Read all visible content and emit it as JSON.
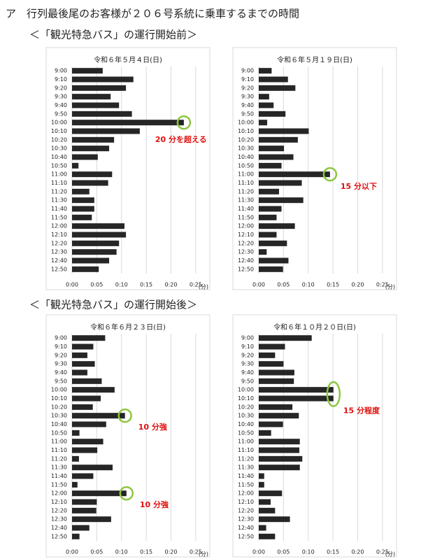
{
  "heading": "ア　行列最後尾のお客様が２０６号系統に乗車するまでの時間",
  "sections": [
    "＜「観光特急バス」の運行開始前＞",
    "＜「観光特急バス」の運行開始後＞"
  ],
  "chart_data": [
    {
      "type": "bar",
      "orientation": "horizontal",
      "title": "令和６年５月４日(日)",
      "categories": [
        "9:00",
        "9:10",
        "9:20",
        "9:30",
        "9:40",
        "9:50",
        "10:00",
        "10:10",
        "10:20",
        "10:30",
        "10:40",
        "10:50",
        "11:00",
        "11:10",
        "11:20",
        "11:30",
        "11:40",
        "11:50",
        "12:00",
        "12:10",
        "12:20",
        "12:30",
        "12:40",
        "12:50"
      ],
      "values": [
        6.2,
        12.4,
        10.9,
        7.8,
        9.5,
        12.1,
        22.6,
        13.7,
        8.5,
        7.5,
        5.2,
        1.3,
        8.1,
        7.3,
        3.5,
        4.5,
        4.5,
        4.0,
        10.6,
        10.9,
        9.5,
        9.0,
        7.5,
        5.4
      ],
      "color": "#262626",
      "xlim": [
        0,
        27
      ],
      "xticks": [
        {
          "value": 0,
          "label": "0:00"
        },
        {
          "value": 5,
          "label": "0:05"
        },
        {
          "value": 10,
          "label": "0:10"
        },
        {
          "value": 15,
          "label": "0:15"
        },
        {
          "value": 20,
          "label": "0:20"
        },
        {
          "value": 25,
          "label": "0:25"
        }
      ],
      "xlabel": "(分)",
      "grid": true,
      "annotations": [
        "20 分を超える"
      ]
    },
    {
      "type": "bar",
      "orientation": "horizontal",
      "title": "令和６年５月１９日(日)",
      "categories": [
        "9:00",
        "9:10",
        "9:20",
        "9:30",
        "9:40",
        "9:50",
        "10:00",
        "10:10",
        "10:20",
        "10:30",
        "10:40",
        "10:50",
        "11:00",
        "11:10",
        "11:20",
        "11:30",
        "11:40",
        "11:50",
        "12:00",
        "12:10",
        "12:20",
        "12:30",
        "12:40",
        "12:50"
      ],
      "values": [
        2.6,
        5.9,
        7.4,
        2.1,
        3.0,
        5.4,
        1.7,
        10.1,
        7.9,
        5.1,
        7.0,
        4.6,
        14.4,
        8.7,
        4.1,
        9.0,
        4.6,
        3.6,
        7.3,
        3.6,
        5.7,
        1.6,
        6.0,
        4.9
      ],
      "color": "#262626",
      "xlim": [
        0,
        27
      ],
      "xticks": [
        {
          "value": 0,
          "label": "0:00"
        },
        {
          "value": 5,
          "label": "0:05"
        },
        {
          "value": 10,
          "label": "0:10"
        },
        {
          "value": 15,
          "label": "0:15"
        },
        {
          "value": 20,
          "label": "0:20"
        },
        {
          "value": 25,
          "label": "0:25"
        }
      ],
      "xlabel": "(分)",
      "grid": true,
      "annotations": [
        "15 分以下"
      ]
    },
    {
      "type": "bar",
      "orientation": "horizontal",
      "title": "令和６年６月２３日(日)",
      "categories": [
        "9:00",
        "9:10",
        "9:20",
        "9:30",
        "9:40",
        "9:50",
        "10:00",
        "10:10",
        "10:20",
        "10:30",
        "10:40",
        "10:50",
        "11:00",
        "11:10",
        "11:20",
        "11:30",
        "11:40",
        "11:50",
        "12:00",
        "12:10",
        "12:20",
        "12:30",
        "12:40",
        "12:50"
      ],
      "values": [
        6.7,
        4.3,
        3.1,
        4.6,
        3.1,
        6.0,
        8.6,
        5.8,
        4.2,
        10.7,
        6.9,
        1.5,
        6.3,
        5.1,
        1.4,
        8.2,
        4.3,
        1.1,
        11.0,
        5.0,
        4.9,
        7.9,
        3.5,
        1.5
      ],
      "color": "#262626",
      "xlim": [
        0,
        27
      ],
      "xticks": [
        {
          "value": 0,
          "label": "0:00"
        },
        {
          "value": 5,
          "label": "0:05"
        },
        {
          "value": 10,
          "label": "0:10"
        },
        {
          "value": 15,
          "label": "0:15"
        },
        {
          "value": 20,
          "label": "0:20"
        },
        {
          "value": 25,
          "label": "0:25"
        }
      ],
      "xlabel": "(分)",
      "grid": true,
      "annotations": [
        "10 分強",
        "10 分強"
      ]
    },
    {
      "type": "bar",
      "orientation": "horizontal",
      "title": "令和６年１０月２０日(日)",
      "categories": [
        "9:00",
        "9:10",
        "9:20",
        "9:30",
        "9:40",
        "9:50",
        "10:00",
        "10:10",
        "10:20",
        "10:30",
        "10:40",
        "10:50",
        "11:00",
        "11:10",
        "11:20",
        "11:30",
        "11:40",
        "11:50",
        "12:00",
        "12:10",
        "12:20",
        "12:30",
        "12:40",
        "12:50"
      ],
      "values": [
        10.7,
        5.3,
        3.3,
        5.0,
        7.2,
        7.1,
        15.1,
        15.1,
        6.8,
        8.1,
        4.9,
        2.5,
        8.3,
        8.2,
        8.8,
        8.3,
        1.1,
        1.1,
        4.7,
        2.4,
        3.3,
        6.3,
        1.5,
        3.3
      ],
      "color": "#262626",
      "xlim": [
        0,
        27
      ],
      "xticks": [
        {
          "value": 0,
          "label": "0:00"
        },
        {
          "value": 5,
          "label": "0:05"
        },
        {
          "value": 10,
          "label": "0:10"
        },
        {
          "value": 15,
          "label": "0:15"
        },
        {
          "value": 20,
          "label": "0:20"
        },
        {
          "value": 25,
          "label": "0:25"
        }
      ],
      "xlabel": "(分)",
      "grid": true,
      "annotations": [
        "15 分程度"
      ]
    }
  ]
}
